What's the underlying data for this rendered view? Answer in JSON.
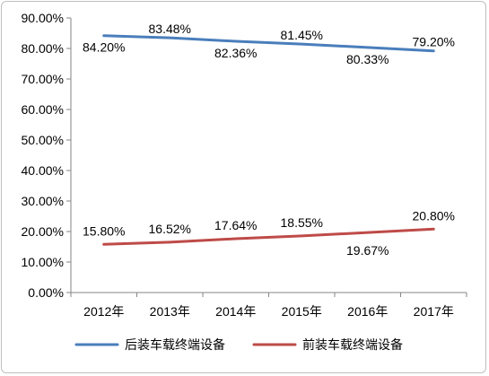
{
  "chart_data": {
    "type": "line",
    "categories": [
      "2012年",
      "2013年",
      "2014年",
      "2015年",
      "2016年",
      "2017年"
    ],
    "ylim": [
      0,
      90
    ],
    "y_ticks": [
      "0.00%",
      "10.00%",
      "20.00%",
      "30.00%",
      "40.00%",
      "50.00%",
      "60.00%",
      "70.00%",
      "80.00%",
      "90.00%"
    ],
    "grid": false,
    "legend_position": "bottom",
    "series": [
      {
        "name": "后装车载终端设备",
        "color": "#4a7ebb",
        "values": [
          84.2,
          83.48,
          82.36,
          81.45,
          80.33,
          79.2
        ],
        "labels": [
          "84.20%",
          "83.48%",
          "82.36%",
          "81.45%",
          "80.33%",
          "79.20%"
        ]
      },
      {
        "name": "前装车载终端设备",
        "color": "#be4b48",
        "values": [
          15.8,
          16.52,
          17.64,
          18.55,
          19.67,
          20.8
        ],
        "labels": [
          "15.80%",
          "16.52%",
          "17.64%",
          "18.55%",
          "19.67%",
          "20.80%"
        ]
      }
    ]
  }
}
